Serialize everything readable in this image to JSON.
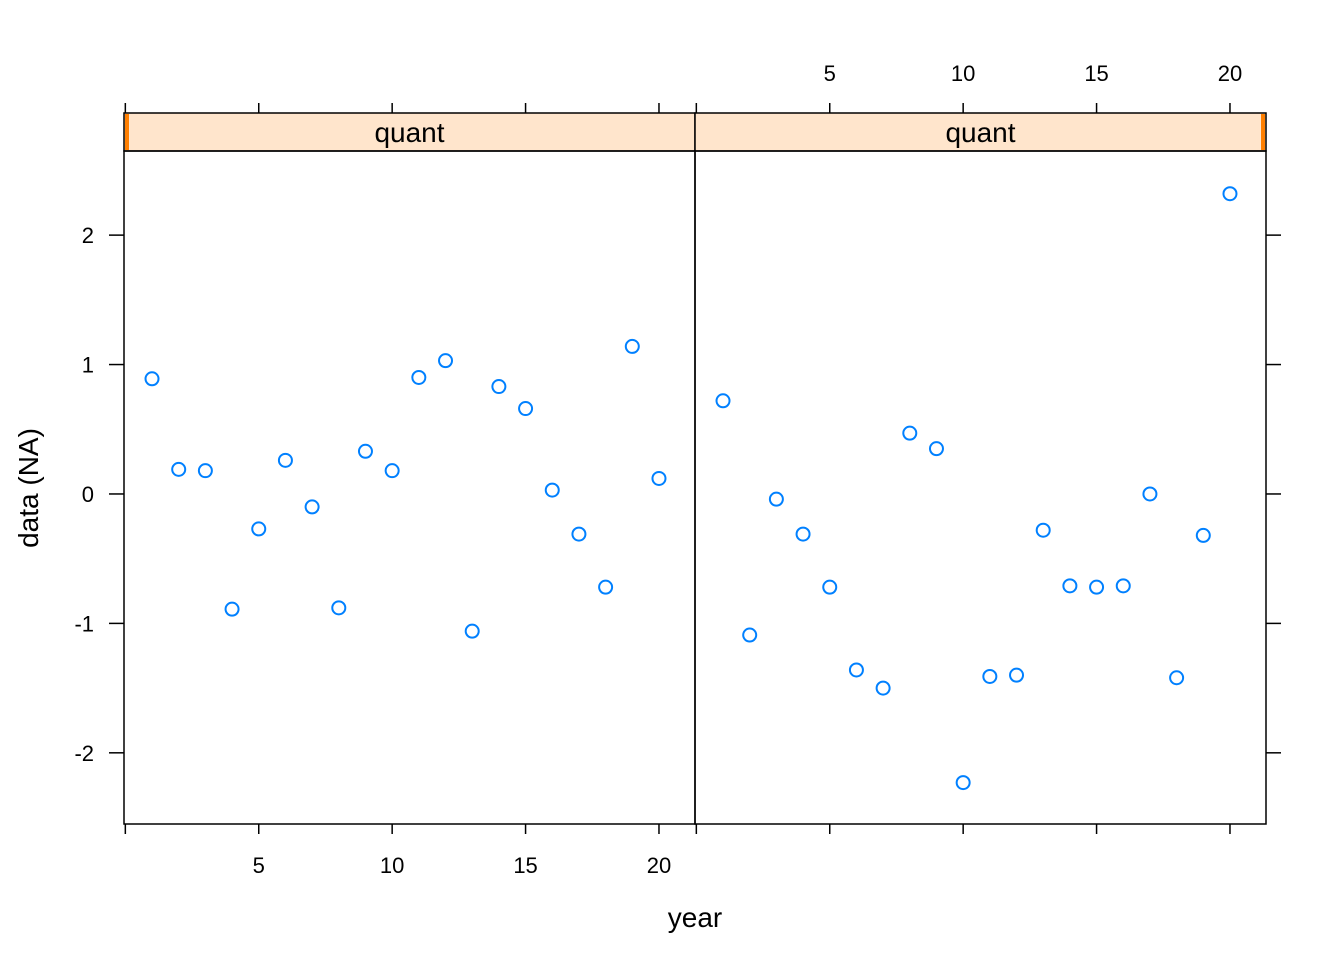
{
  "chart_data": {
    "type": "scatter",
    "xlabel": "year",
    "ylabel": "data (NA)",
    "xlim": [
      -0.05,
      21.35
    ],
    "ylim": [
      -2.55,
      2.65
    ],
    "x_ticks": [
      5,
      10,
      15,
      20
    ],
    "y_ticks": [
      -2,
      -1,
      0,
      1,
      2
    ],
    "y_tick_labels": [
      "-2",
      "-1",
      "0",
      "1",
      "2"
    ],
    "grid": false,
    "marker_color": "#0080ff",
    "strip_color": "#ffe5cc",
    "strip_marker_color": "#ff7f00",
    "panels": [
      {
        "strip_label": "quant",
        "x": [
          1,
          2,
          3,
          4,
          5,
          6,
          7,
          8,
          9,
          10,
          11,
          12,
          13,
          14,
          15,
          16,
          17,
          18,
          19,
          20
        ],
        "y": [
          0.89,
          0.19,
          0.18,
          -0.89,
          -0.27,
          0.26,
          -0.1,
          -0.88,
          0.33,
          0.18,
          0.9,
          1.03,
          -1.06,
          0.83,
          0.66,
          0.03,
          -0.31,
          -0.72,
          1.14,
          0.12
        ]
      },
      {
        "strip_label": "quant",
        "x": [
          1,
          2,
          3,
          4,
          5,
          6,
          7,
          8,
          9,
          10,
          11,
          12,
          13,
          14,
          15,
          16,
          17,
          18,
          19,
          20
        ],
        "y": [
          0.72,
          -1.09,
          -0.04,
          -0.31,
          -0.72,
          -1.36,
          -1.5,
          0.47,
          0.35,
          -2.23,
          -1.41,
          -1.4,
          -0.28,
          -0.71,
          -0.72,
          -0.71,
          0.0,
          -1.42,
          -0.32,
          2.32
        ]
      }
    ]
  }
}
